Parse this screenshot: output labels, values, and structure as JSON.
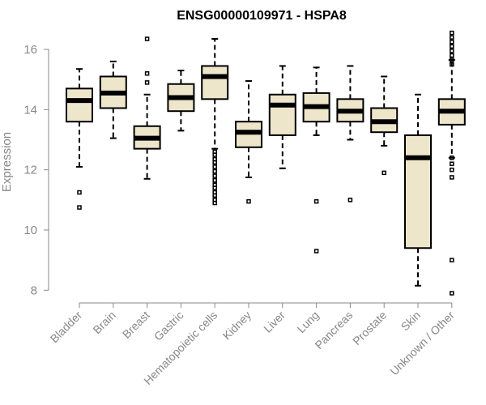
{
  "chart_data": {
    "type": "boxplot",
    "title": "ENSG00000109971 - HSPA8",
    "xlabel": "",
    "ylabel": "Expression",
    "ylim": [
      7.9,
      16.7
    ],
    "yticks": [
      8,
      10,
      12,
      14,
      16
    ],
    "categories": [
      "Bladder",
      "Brain",
      "Breast",
      "Gastric",
      "Hematopoietic cells",
      "Kidney",
      "Liver",
      "Lung",
      "Pancreas",
      "Prostate",
      "Skin",
      "Unknown / Other"
    ],
    "boxes": [
      {
        "category": "Bladder",
        "whisker_low": 12.1,
        "q1": 13.6,
        "median": 14.3,
        "q3": 14.7,
        "whisker_high": 15.35,
        "outliers": [
          11.25,
          10.75
        ]
      },
      {
        "category": "Brain",
        "whisker_low": 13.05,
        "q1": 14.05,
        "median": 14.55,
        "q3": 15.1,
        "whisker_high": 15.6,
        "outliers": []
      },
      {
        "category": "Breast",
        "whisker_low": 11.7,
        "q1": 12.7,
        "median": 13.05,
        "q3": 13.45,
        "whisker_high": 14.5,
        "outliers": [
          16.35,
          15.2,
          14.9
        ]
      },
      {
        "category": "Gastric",
        "whisker_low": 13.3,
        "q1": 13.95,
        "median": 14.4,
        "q3": 14.85,
        "whisker_high": 15.3,
        "outliers": []
      },
      {
        "category": "Hematopoietic cells",
        "whisker_low": 12.7,
        "q1": 14.35,
        "median": 15.1,
        "q3": 15.45,
        "whisker_high": 16.35,
        "outliers": [
          12.6,
          12.5,
          12.35,
          12.25,
          12.1,
          11.95,
          11.8,
          11.65,
          11.5,
          11.4,
          11.25,
          11.15,
          11.0,
          10.9
        ]
      },
      {
        "category": "Kidney",
        "whisker_low": 11.75,
        "q1": 12.75,
        "median": 13.25,
        "q3": 13.6,
        "whisker_high": 14.95,
        "outliers": [
          10.95
        ]
      },
      {
        "category": "Liver",
        "whisker_low": 12.05,
        "q1": 13.15,
        "median": 14.15,
        "q3": 14.5,
        "whisker_high": 15.45,
        "outliers": []
      },
      {
        "category": "Lung",
        "whisker_low": 13.15,
        "q1": 13.6,
        "median": 14.1,
        "q3": 14.55,
        "whisker_high": 15.4,
        "outliers": [
          10.95,
          9.3
        ]
      },
      {
        "category": "Pancreas",
        "whisker_low": 13.0,
        "q1": 13.6,
        "median": 13.95,
        "q3": 14.35,
        "whisker_high": 15.45,
        "outliers": [
          11.0
        ]
      },
      {
        "category": "Prostate",
        "whisker_low": 12.8,
        "q1": 13.25,
        "median": 13.6,
        "q3": 14.05,
        "whisker_high": 15.1,
        "outliers": [
          11.9
        ]
      },
      {
        "category": "Skin",
        "whisker_low": 8.15,
        "q1": 9.4,
        "median": 12.4,
        "q3": 13.15,
        "whisker_high": 14.5,
        "outliers": []
      },
      {
        "category": "Unknown / Other",
        "whisker_low": 12.4,
        "q1": 13.5,
        "median": 13.95,
        "q3": 14.35,
        "whisker_high": 15.65,
        "outliers": [
          16.55,
          16.4,
          16.25,
          16.1,
          15.95,
          15.8,
          15.65,
          15.5,
          12.4,
          12.2,
          12.0,
          11.75,
          9.0,
          7.9
        ]
      }
    ]
  }
}
